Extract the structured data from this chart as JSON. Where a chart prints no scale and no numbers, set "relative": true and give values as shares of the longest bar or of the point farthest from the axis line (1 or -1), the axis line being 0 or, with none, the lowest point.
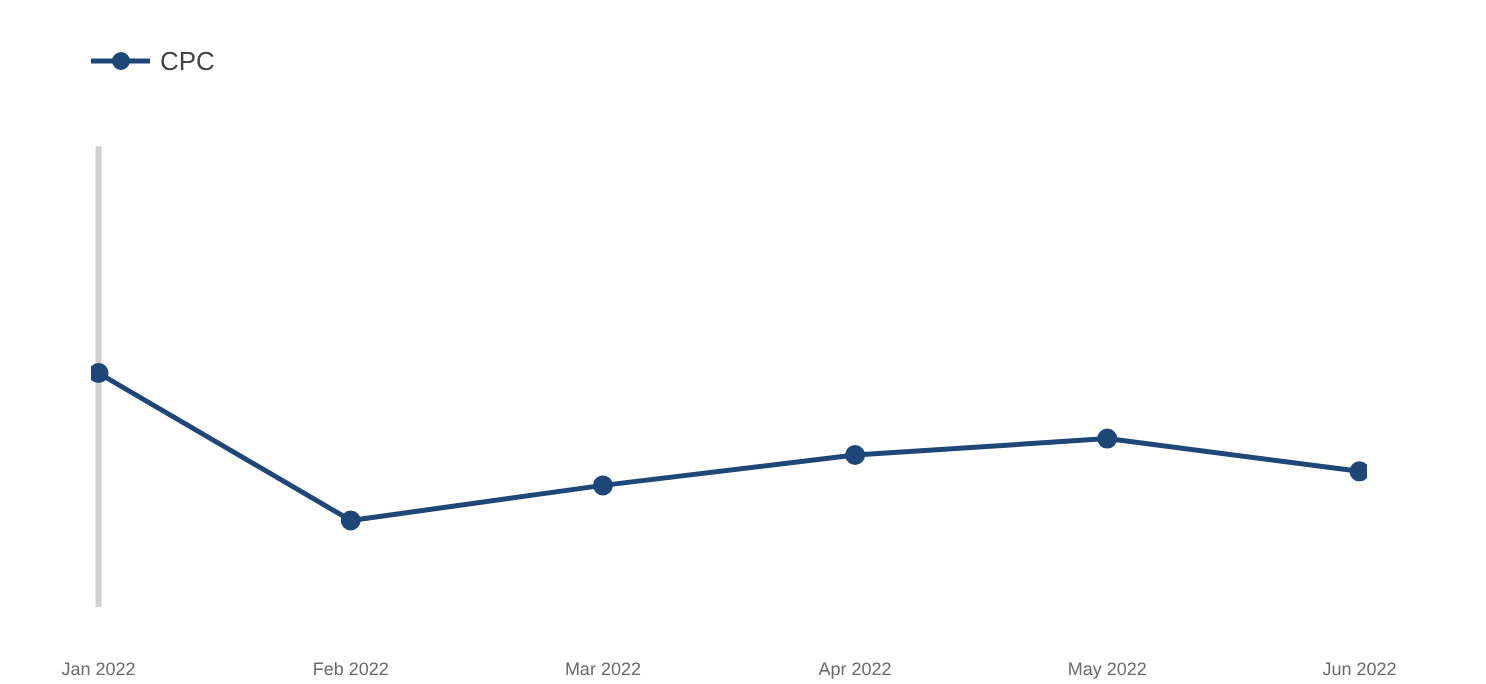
{
  "chart_data": {
    "type": "line",
    "relative": true,
    "categories": [
      "Jan 2022",
      "Feb 2022",
      "Mar 2022",
      "Apr 2022",
      "May 2022",
      "Jun 2022"
    ],
    "series": [
      {
        "name": "CPC",
        "color": "#1e4677",
        "values": [
          1,
          0.37,
          0.52,
          0.65,
          0.72,
          0.58
        ]
      }
    ],
    "marker": "circle",
    "legend": "top left"
  }
}
